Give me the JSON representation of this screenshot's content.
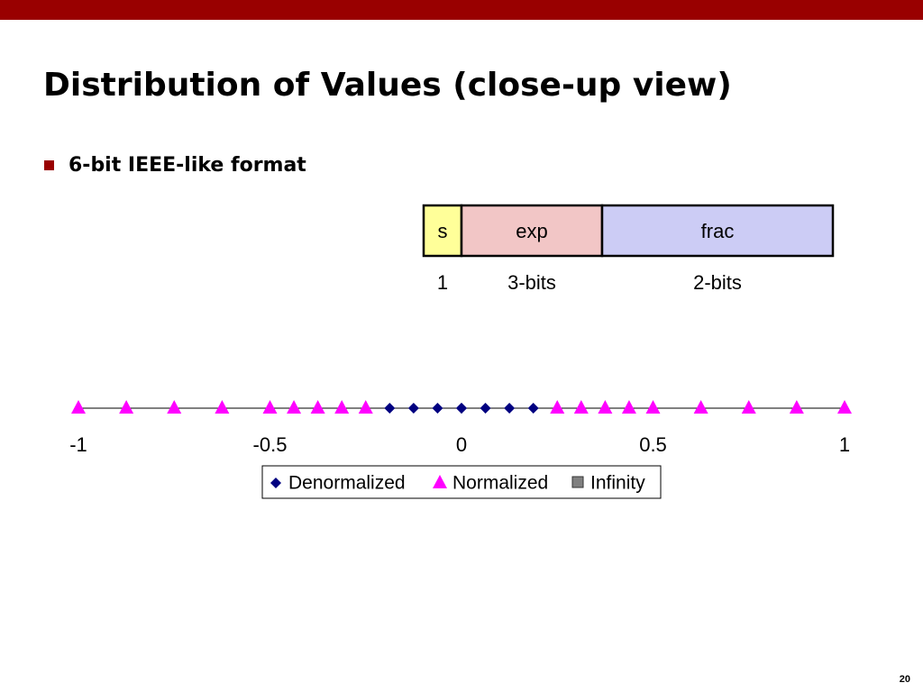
{
  "header": {
    "title": "Distribution of Values (close-up view)",
    "bullet": "6-bit IEEE-like format",
    "page_number": "20"
  },
  "format": {
    "fields": [
      {
        "name": "s",
        "bits": "1",
        "color": "#ffff99"
      },
      {
        "name": "exp",
        "bits": "3-bits",
        "color": "#f2c6c6"
      },
      {
        "name": "frac",
        "bits": "2-bits",
        "color": "#ccccf5"
      }
    ]
  },
  "chart_data": {
    "type": "scatter",
    "series": [
      {
        "name": "Denormalized",
        "color": "#000080",
        "marker": "diamond",
        "values": [
          -0.1875,
          -0.125,
          -0.0625,
          0,
          0,
          0.0625,
          0.125,
          0.1875
        ]
      },
      {
        "name": "Normalized",
        "color": "#ff00ff",
        "marker": "triangle",
        "values": [
          -1,
          -0.875,
          -0.75,
          -0.625,
          -0.5,
          -0.4375,
          -0.375,
          -0.3125,
          -0.25,
          0.25,
          0.3125,
          0.375,
          0.4375,
          0.5,
          0.625,
          0.75,
          0.875,
          1
        ]
      },
      {
        "name": "Infinity",
        "color": "#808080",
        "marker": "square",
        "values": []
      }
    ],
    "xlim": [
      -1,
      1
    ],
    "xticks": [
      -1,
      -0.5,
      0,
      0.5,
      1
    ],
    "legend": "bottom"
  }
}
